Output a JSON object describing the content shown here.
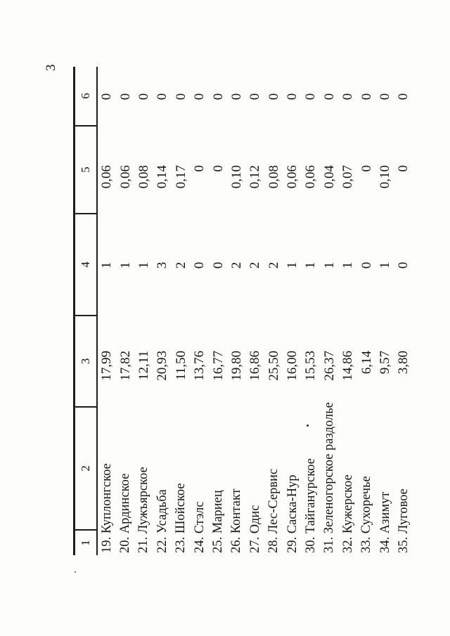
{
  "page_number": "3",
  "table": {
    "headers": [
      "1",
      "2",
      "3",
      "4",
      "5",
      "6"
    ],
    "rows": [
      {
        "name": "19. Куплонгское",
        "col3": "17,99",
        "col4": "1",
        "col5": "0,06",
        "col6": "0"
      },
      {
        "name": "20. Ардинское",
        "col3": "17,82",
        "col4": "1",
        "col5": "0,06",
        "col6": "0"
      },
      {
        "name": "21. Лужъярское",
        "col3": "12,11",
        "col4": "1",
        "col5": "0,08",
        "col6": "0"
      },
      {
        "name": "22. Усадьба",
        "col3": "20,93",
        "col4": "3",
        "col5": "0,14",
        "col6": "0"
      },
      {
        "name": "23. Шойское",
        "col3": "11,50",
        "col4": "2",
        "col5": "0,17",
        "col6": "0"
      },
      {
        "name": "24. Стэлс",
        "col3": "13,76",
        "col4": "0",
        "col5": "0",
        "col6": "0"
      },
      {
        "name": "25. Мариец",
        "col3": "16,77",
        "col4": "0",
        "col5": "0",
        "col6": "0"
      },
      {
        "name": "26. Контакт",
        "col3": "19,80",
        "col4": "2",
        "col5": "0,10",
        "col6": "0"
      },
      {
        "name": "27. Одис",
        "col3": "16,86",
        "col4": "2",
        "col5": "0,12",
        "col6": "0"
      },
      {
        "name": "28. Лес-Сервис",
        "col3": "25,50",
        "col4": "2",
        "col5": "0,08",
        "col6": "0"
      },
      {
        "name": "29. Саска-Нур",
        "col3": "16,00",
        "col4": "1",
        "col5": "0,06",
        "col6": "0"
      },
      {
        "name": "30. Тайганурское",
        "col3": "15,53",
        "col4": "1",
        "col5": "0,06",
        "col6": "0"
      },
      {
        "name": "31. Зеленогорское раздолье",
        "col3": "26,37",
        "col4": "1",
        "col5": "0,04",
        "col6": "0"
      },
      {
        "name": "32. Кужерское",
        "col3": "14,86",
        "col4": "1",
        "col5": "0,07",
        "col6": "0"
      },
      {
        "name": "33. Сухоречье",
        "col3": "6,14",
        "col4": "0",
        "col5": "0",
        "col6": "0"
      },
      {
        "name": "34. Азимут",
        "col3": "9,57",
        "col4": "1",
        "col5": "0,10",
        "col6": "0"
      },
      {
        "name": "35. Луговое",
        "col3": "3,80",
        "col4": "0",
        "col5": "0",
        "col6": "0"
      }
    ]
  }
}
